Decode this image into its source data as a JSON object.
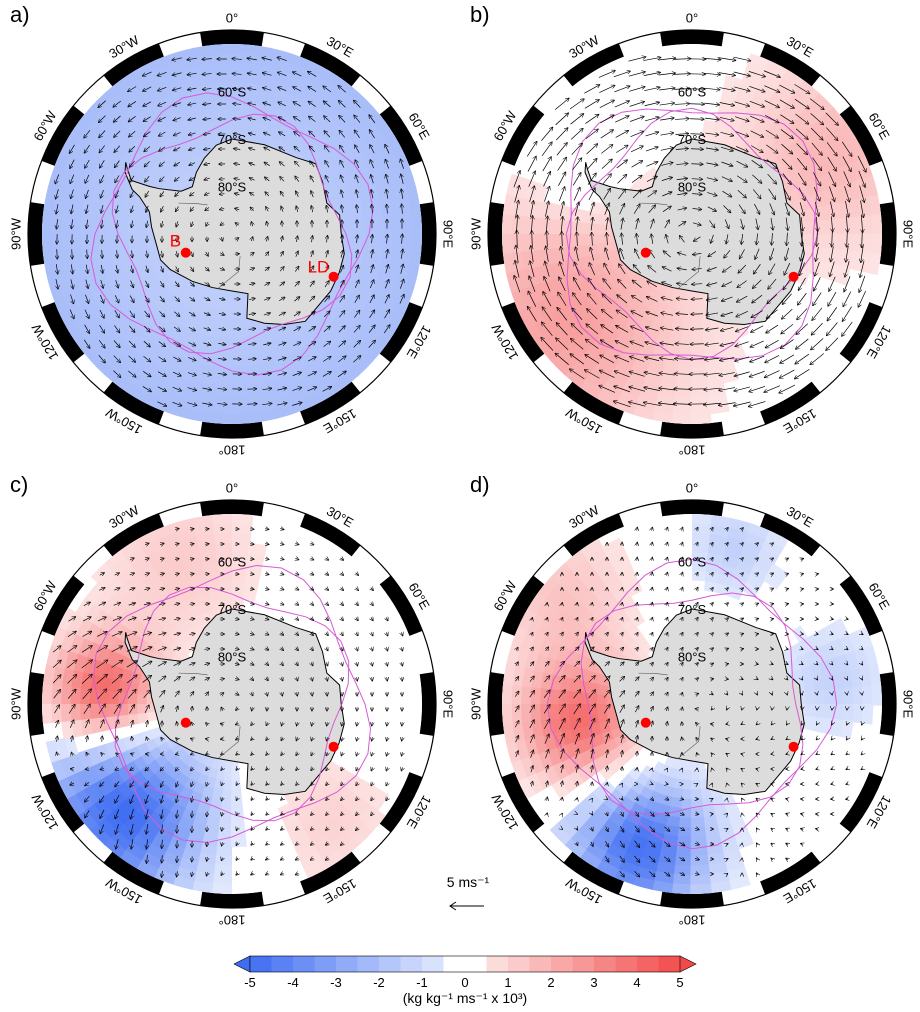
{
  "panels": [
    {
      "id": "a",
      "label": "a)",
      "pattern": "baseline",
      "show_lat": true,
      "show_sites": true,
      "site_labels": true
    },
    {
      "id": "b",
      "label": "b)",
      "pattern": "pos_lon_flow",
      "show_lat": true,
      "show_sites": true,
      "site_labels": false
    },
    {
      "id": "c",
      "label": "c)",
      "pattern": "dipole_c",
      "show_lat": true,
      "show_sites": true,
      "site_labels": false
    },
    {
      "id": "d",
      "label": "d)",
      "pattern": "dipole_d",
      "show_lat": true,
      "show_sites": true,
      "site_labels": false
    }
  ],
  "longitude_labels": [
    "0°",
    "30°E",
    "60°E",
    "90°E",
    "120°E",
    "150°E",
    "180°",
    "150°W",
    "120°W",
    "90°W",
    "60°W",
    "30°W"
  ],
  "latitude_labels": [
    "60°S",
    "70°S",
    "80°S"
  ],
  "sites": [
    {
      "name": "B",
      "label": "B",
      "lat": -79.5,
      "lon": -112
    },
    {
      "name": "LD",
      "label": "LD",
      "lat": -66.8,
      "lon": 112.8
    }
  ],
  "reference_vector": {
    "label": "5 ms⁻¹",
    "magnitude": 5
  },
  "colorbar": {
    "ticks": [
      "-5",
      "-4",
      "-3",
      "-2",
      "-1",
      "0",
      "1",
      "2",
      "3",
      "4",
      "5"
    ],
    "units": "(kg kg⁻¹ ms⁻¹ x 10³)",
    "negative_color": "#3f6df2",
    "positive_color": "#f24a4a"
  },
  "colors": {
    "land": "#dcdcdc",
    "contour": "#d65bd6",
    "site": "#ff0000",
    "frame_black": "#000000"
  }
}
